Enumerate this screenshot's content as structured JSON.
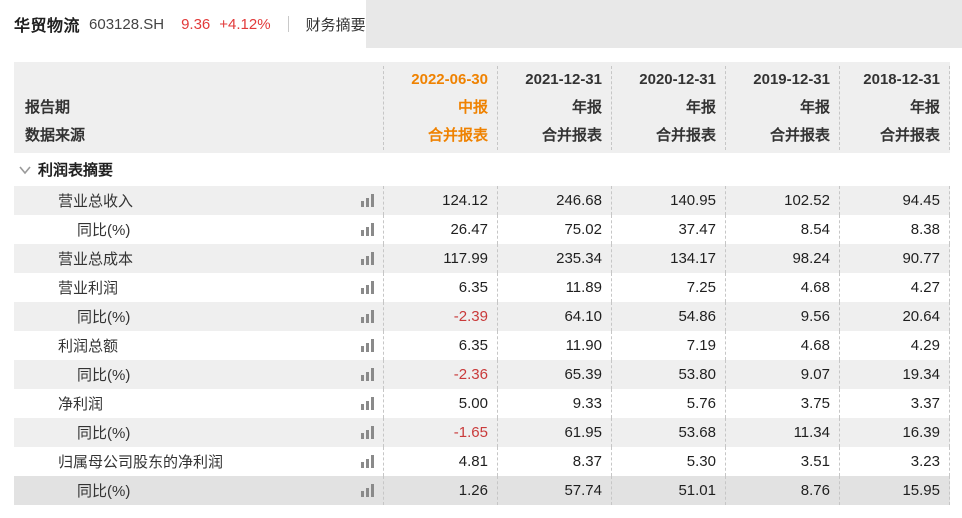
{
  "colors": {
    "accent_orange": "#ef8201",
    "price_red": "#e23a3a",
    "negative_red": "#c93a3a",
    "header_bg": "#efefef",
    "stripe_bg": "#efefef",
    "hover_row_bg": "#e2e2e2",
    "topbar_gray": "#e8e8e8",
    "dashed_border": "#c6c6c6"
  },
  "icons": {
    "trend": "bar-chart-icon",
    "collapse": "chevron-down-icon"
  },
  "topbar": {
    "stock_name": "华贸物流",
    "stock_code": "603128.SH",
    "price": "9.36",
    "change": "+4.12%",
    "page_title": "财务摘要"
  },
  "table": {
    "header": {
      "row_label_1": "报告期",
      "row_label_2": "数据来源",
      "columns": [
        {
          "date": "2022-06-30",
          "report_type": "中报",
          "source": "合并报表",
          "highlight": true
        },
        {
          "date": "2021-12-31",
          "report_type": "年报",
          "source": "合并报表",
          "highlight": false
        },
        {
          "date": "2020-12-31",
          "report_type": "年报",
          "source": "合并报表",
          "highlight": false
        },
        {
          "date": "2019-12-31",
          "report_type": "年报",
          "source": "合并报表",
          "highlight": false
        },
        {
          "date": "2018-12-31",
          "report_type": "年报",
          "source": "合并报表",
          "highlight": false
        }
      ]
    },
    "section": {
      "title": "利润表摘要"
    },
    "rows": [
      {
        "label": "营业总收入",
        "indent": 1,
        "values": [
          "124.12",
          "246.68",
          "140.95",
          "102.52",
          "94.45"
        ],
        "hover": false
      },
      {
        "label": "同比(%)",
        "indent": 2,
        "values": [
          "26.47",
          "75.02",
          "37.47",
          "8.54",
          "8.38"
        ],
        "hover": false
      },
      {
        "label": "营业总成本",
        "indent": 1,
        "values": [
          "117.99",
          "235.34",
          "134.17",
          "98.24",
          "90.77"
        ],
        "hover": false
      },
      {
        "label": "营业利润",
        "indent": 1,
        "values": [
          "6.35",
          "11.89",
          "7.25",
          "4.68",
          "4.27"
        ],
        "hover": false
      },
      {
        "label": "同比(%)",
        "indent": 2,
        "values": [
          "-2.39",
          "64.10",
          "54.86",
          "9.56",
          "20.64"
        ],
        "hover": false
      },
      {
        "label": "利润总额",
        "indent": 1,
        "values": [
          "6.35",
          "11.90",
          "7.19",
          "4.68",
          "4.29"
        ],
        "hover": false
      },
      {
        "label": "同比(%)",
        "indent": 2,
        "values": [
          "-2.36",
          "65.39",
          "53.80",
          "9.07",
          "19.34"
        ],
        "hover": false
      },
      {
        "label": "净利润",
        "indent": 1,
        "values": [
          "5.00",
          "9.33",
          "5.76",
          "3.75",
          "3.37"
        ],
        "hover": false
      },
      {
        "label": "同比(%)",
        "indent": 2,
        "values": [
          "-1.65",
          "61.95",
          "53.68",
          "11.34",
          "16.39"
        ],
        "hover": false
      },
      {
        "label": "归属母公司股东的净利润",
        "indent": 1,
        "values": [
          "4.81",
          "8.37",
          "5.30",
          "3.51",
          "3.23"
        ],
        "hover": false
      },
      {
        "label": "同比(%)",
        "indent": 2,
        "values": [
          "1.26",
          "57.74",
          "51.01",
          "8.76",
          "15.95"
        ],
        "hover": true
      }
    ]
  }
}
